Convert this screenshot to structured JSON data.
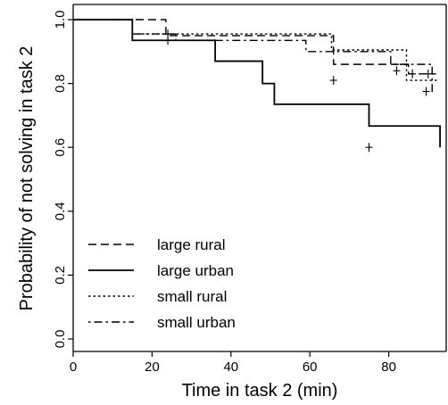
{
  "chart_data": {
    "type": "line",
    "subtype": "step",
    "title": "",
    "xlabel": "Time in task 2 (min)",
    "ylabel": "Probability of not solving in task 2",
    "xlim": [
      0,
      93
    ],
    "ylim": [
      0,
      1
    ],
    "xticks": [
      "0",
      "20",
      "40",
      "60",
      "80"
    ],
    "yticks": [
      "0.0",
      "0.2",
      "0.4",
      "0.6",
      "0.8",
      "1.0"
    ],
    "grid": false,
    "legend_position": "bottom-left",
    "series": [
      {
        "name": "large rural",
        "dash": "dashed",
        "x": [
          0,
          15,
          23.5,
          63,
          66,
          80.5,
          85,
          90,
          92
        ],
        "y": [
          1,
          1,
          0.95,
          0.95,
          0.86,
          0.86,
          0.83,
          0.83,
          0.83
        ],
        "censored": [
          [
            86,
            0.83
          ],
          [
            90,
            0.83
          ]
        ]
      },
      {
        "name": "large urban",
        "dash": "solid",
        "x": [
          0,
          12,
          15,
          36,
          48,
          51,
          75,
          93
        ],
        "y": [
          1,
          1,
          0.935,
          0.87,
          0.8,
          0.735,
          0.667,
          0.6
        ],
        "censored": [
          [
            75,
            0.6
          ]
        ]
      },
      {
        "name": "small rural",
        "dash": "dotted",
        "x": [
          0,
          15,
          57,
          65.5,
          84.5,
          92.5
        ],
        "y": [
          1,
          0.955,
          0.955,
          0.905,
          0.81,
          0.81
        ],
        "censored": [
          [
            24,
            0.955
          ],
          [
            66,
            0.81
          ]
        ]
      },
      {
        "name": "small urban",
        "dash": "dotdash",
        "x": [
          0,
          15,
          24,
          26,
          59,
          80.5,
          91
        ],
        "y": [
          1,
          0.955,
          0.955,
          0.935,
          0.9,
          0.86,
          0.77
        ],
        "censored": [
          [
            24,
            0.935
          ],
          [
            82,
            0.84
          ],
          [
            89.5,
            0.775
          ]
        ]
      }
    ]
  }
}
